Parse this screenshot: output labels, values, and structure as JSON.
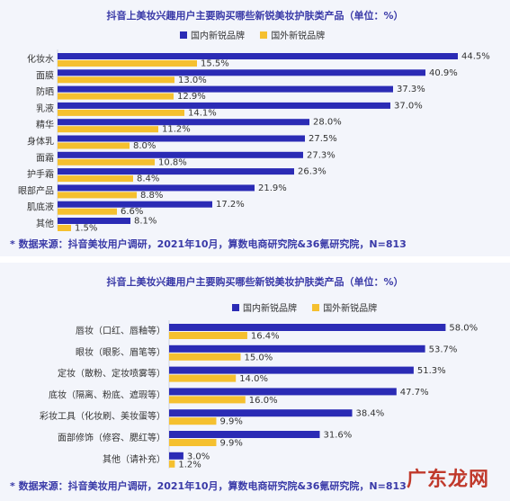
{
  "colors": {
    "domestic": "#2b2bb5",
    "foreign": "#f5c02f"
  },
  "watermark": "广东龙网",
  "chart_data": [
    {
      "type": "bar",
      "orientation": "horizontal",
      "title": "抖音上美妆兴趣用户主要购买哪些新锐美妆护肤类产品（单位：%）",
      "legend_position": "top",
      "categories": [
        "化妆水",
        "面膜",
        "防晒",
        "乳液",
        "精华",
        "身体乳",
        "面霜",
        "护手霜",
        "眼部产品",
        "肌底液",
        "其他"
      ],
      "series": [
        {
          "name": "国内新锐品牌",
          "values": [
            44.5,
            40.9,
            37.3,
            37.0,
            28.0,
            27.5,
            27.3,
            26.3,
            21.9,
            17.2,
            8.1
          ]
        },
        {
          "name": "国外新锐品牌",
          "values": [
            15.5,
            13.0,
            12.9,
            14.1,
            11.2,
            8.0,
            10.8,
            8.4,
            8.8,
            6.6,
            1.5
          ]
        }
      ],
      "source": "* 数据来源：抖音美妆用户调研，2021年10月，算数电商研究院&36氪研究院，N=813"
    },
    {
      "type": "bar",
      "orientation": "horizontal",
      "title": "抖音上美妆兴趣用户主要购买哪些新锐美妆护肤类产品（单位：%）",
      "legend_position": "top",
      "categories": [
        "唇妆（口红、唇釉等）",
        "眼妆（眼影、眉笔等）",
        "定妆（散粉、定妆喷雾等）",
        "底妆（隔离、粉底、遮瑕等）",
        "彩妆工具（化妆刷、美妆蛋等）",
        "面部修饰（修容、腮红等）",
        "其他（请补充）"
      ],
      "series": [
        {
          "name": "国内新锐品牌",
          "values": [
            58.0,
            53.7,
            51.3,
            47.7,
            38.4,
            31.6,
            3.0
          ]
        },
        {
          "name": "国外新锐品牌",
          "values": [
            16.4,
            15.0,
            14.0,
            16.0,
            9.9,
            9.9,
            1.2
          ]
        }
      ],
      "source": "* 数据来源：抖音美妆用户调研，2021年10月，算数电商研究院&36氪研究院，N=813"
    }
  ]
}
